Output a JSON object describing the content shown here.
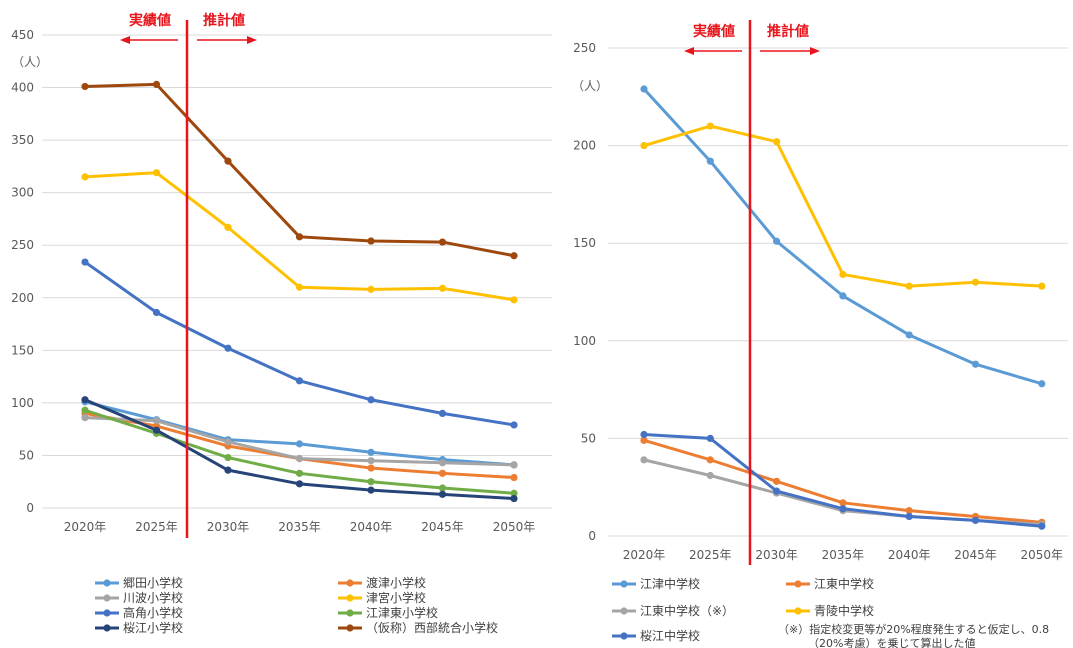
{
  "chart_data": [
    {
      "type": "line",
      "title": "",
      "ylabel": "（人）",
      "ylim": [
        0,
        450
      ],
      "yticks": [
        0,
        50,
        100,
        150,
        200,
        250,
        300,
        350,
        400,
        450
      ],
      "categories": [
        "2020年",
        "2025年",
        "2030年",
        "2035年",
        "2040年",
        "2045年",
        "2050年"
      ],
      "grid": true,
      "legend_position": "bottom",
      "divider_after": "2025年",
      "phase_labels": {
        "actual": "実績値",
        "estimate": "推計値"
      },
      "series": [
        {
          "name": "郷田小学校",
          "color": "#5b9bd5",
          "values": [
            101,
            84,
            65,
            61,
            53,
            46,
            41
          ]
        },
        {
          "name": "渡津小学校",
          "color": "#ed7d31",
          "values": [
            90,
            78,
            59,
            47,
            38,
            33,
            29
          ]
        },
        {
          "name": "川波小学校",
          "color": "#a5a5a5",
          "values": [
            86,
            83,
            63,
            47,
            45,
            43,
            41
          ]
        },
        {
          "name": "津宮小学校",
          "color": "#ffc000",
          "values": [
            315,
            319,
            267,
            210,
            208,
            209,
            198
          ]
        },
        {
          "name": "高角小学校",
          "color": "#4472c4",
          "values": [
            234,
            186,
            152,
            121,
            103,
            90,
            79
          ]
        },
        {
          "name": "江津東小学校",
          "color": "#70ad47",
          "values": [
            93,
            71,
            48,
            33,
            25,
            19,
            14
          ]
        },
        {
          "name": "桜江小学校",
          "color": "#264478",
          "values": [
            103,
            74,
            36,
            23,
            17,
            13,
            9
          ]
        },
        {
          "name": "（仮称）西部統合小学校",
          "color": "#9e480e",
          "values": [
            401,
            403,
            330,
            258,
            254,
            253,
            240
          ]
        }
      ]
    },
    {
      "type": "line",
      "title": "",
      "ylabel": "（人）",
      "ylim": [
        0,
        250
      ],
      "yticks": [
        0,
        50,
        100,
        150,
        200,
        250
      ],
      "categories": [
        "2020年",
        "2025年",
        "2030年",
        "2035年",
        "2040年",
        "2045年",
        "2050年"
      ],
      "grid": true,
      "legend_position": "bottom",
      "divider_after": "2025年",
      "phase_labels": {
        "actual": "実績値",
        "estimate": "推計値"
      },
      "series": [
        {
          "name": "江津中学校",
          "color": "#5b9bd5",
          "values": [
            229,
            192,
            151,
            123,
            103,
            88,
            78
          ]
        },
        {
          "name": "江東中学校",
          "color": "#ed7d31",
          "values": [
            49,
            39,
            28,
            17,
            13,
            10,
            7
          ]
        },
        {
          "name": "江東中学校（※）",
          "color": "#a5a5a5",
          "values": [
            39,
            31,
            22,
            13,
            10,
            8,
            6
          ]
        },
        {
          "name": "青陵中学校",
          "color": "#ffc000",
          "values": [
            200,
            210,
            202,
            134,
            128,
            130,
            128
          ]
        },
        {
          "name": "桜江中学校",
          "color": "#4472c4",
          "values": [
            52,
            50,
            23,
            14,
            10,
            8,
            5
          ]
        }
      ],
      "note": [
        "（※）指定校変更等が20%程度発生すると仮定し、0.8",
        "（20%考慮）を乗じて算出した値"
      ]
    }
  ]
}
